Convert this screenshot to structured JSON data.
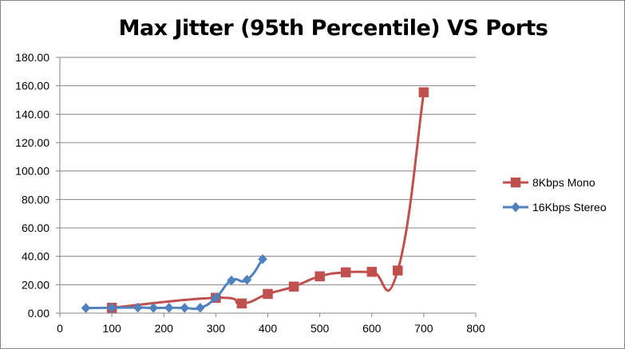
{
  "chart_data": {
    "type": "line",
    "title": "Max Jitter (95th Percentile) VS Ports",
    "xlabel": "",
    "ylabel": "",
    "xlim": [
      0,
      800
    ],
    "ylim": [
      0,
      180
    ],
    "xticks": [
      "0",
      "100",
      "200",
      "300",
      "400",
      "500",
      "600",
      "700",
      "800"
    ],
    "yticks": [
      "0.00",
      "20.00",
      "40.00",
      "60.00",
      "80.00",
      "100.00",
      "120.00",
      "140.00",
      "160.00",
      "180.00"
    ],
    "grid": "horizontal",
    "legend_position": "right",
    "series": [
      {
        "name": "8Kbps Mono",
        "color": "#C0504D",
        "marker": "square",
        "x": [
          100,
          300,
          350,
          400,
          450,
          500,
          550,
          600,
          650,
          700
        ],
        "y": [
          3.8,
          10.8,
          6.8,
          13.5,
          18.7,
          25.9,
          28.7,
          29.1,
          30.0,
          155.4
        ]
      },
      {
        "name": "16Kbps Stereo",
        "color": "#4F81BD",
        "marker": "diamond",
        "x": [
          50,
          100,
          150,
          180,
          210,
          240,
          270,
          300,
          330,
          360,
          390
        ],
        "y": [
          3.6,
          3.8,
          3.9,
          3.7,
          3.8,
          3.7,
          3.8,
          10.8,
          23.0,
          23.5,
          38.0
        ]
      }
    ]
  }
}
